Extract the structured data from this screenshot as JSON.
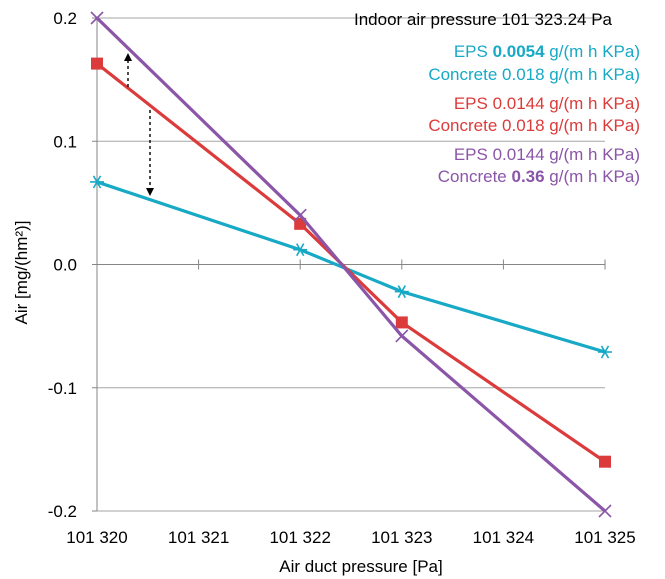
{
  "chart_data": {
    "type": "line",
    "title": "",
    "xlabel": "Air duct pressure [Pa]",
    "ylabel": "Air [mg/(hm²)]",
    "xlim": [
      101320,
      101325
    ],
    "ylim": [
      -0.2,
      0.2
    ],
    "x_ticks": [
      101320,
      101321,
      101322,
      101323,
      101324,
      101325
    ],
    "x_tick_labels": [
      "101 320",
      "101 321",
      "101 322",
      "101 323",
      "101 324",
      "101 325"
    ],
    "y_ticks": [
      -0.2,
      -0.1,
      0.0,
      0.1,
      0.2
    ],
    "y_tick_labels": [
      "-0.2",
      "-0.1",
      "0.0",
      "0.1",
      "0.2"
    ],
    "grid": "horizontal",
    "legend_position": "top-right",
    "annotation": "Indoor air pressure 101 323.24 Pa",
    "series": [
      {
        "name": "EPS 0.0054 g/(m h KPa) Concrete 0.018 g/(m h KPa)",
        "legend_lines": [
          [
            {
              "text": "EPS ",
              "bold": false
            },
            {
              "text": "0.0054",
              "bold": true
            },
            {
              "text": " g/(m h KPa)",
              "bold": false
            }
          ],
          [
            {
              "text": "Concrete 0.018 g/(m h KPa)",
              "bold": false
            }
          ]
        ],
        "color": "#17A9C6",
        "marker": "asterisk",
        "x": [
          101320,
          101322,
          101323,
          101325
        ],
        "y": [
          0.067,
          0.012,
          -0.022,
          -0.071
        ]
      },
      {
        "name": "EPS 0.0144 g/(m h KPa) Concrete 0.018 g/(m h KPa)",
        "legend_lines": [
          [
            {
              "text": "EPS 0.0144 g/(m h KPa)",
              "bold": false
            }
          ],
          [
            {
              "text": "Concrete 0.018 g/(m h KPa)",
              "bold": false
            }
          ]
        ],
        "color": "#DC3B3B",
        "marker": "square",
        "x": [
          101320,
          101322,
          101323,
          101325
        ],
        "y": [
          0.163,
          0.033,
          -0.047,
          -0.16
        ]
      },
      {
        "name": "EPS 0.0144 g/(m h KPa) Concrete 0.36 g/(m h KPa)",
        "legend_lines": [
          [
            {
              "text": "EPS 0.0144 g/(m h KPa)",
              "bold": false
            }
          ],
          [
            {
              "text": "Concrete ",
              "bold": false
            },
            {
              "text": "0.36",
              "bold": true
            },
            {
              "text": " g/(m h KPa)",
              "bold": false
            }
          ]
        ],
        "color": "#8B55A8",
        "marker": "x",
        "x": [
          101320,
          101322,
          101323,
          101325
        ],
        "y": [
          0.2,
          0.04,
          -0.058,
          -0.2
        ]
      }
    ]
  }
}
